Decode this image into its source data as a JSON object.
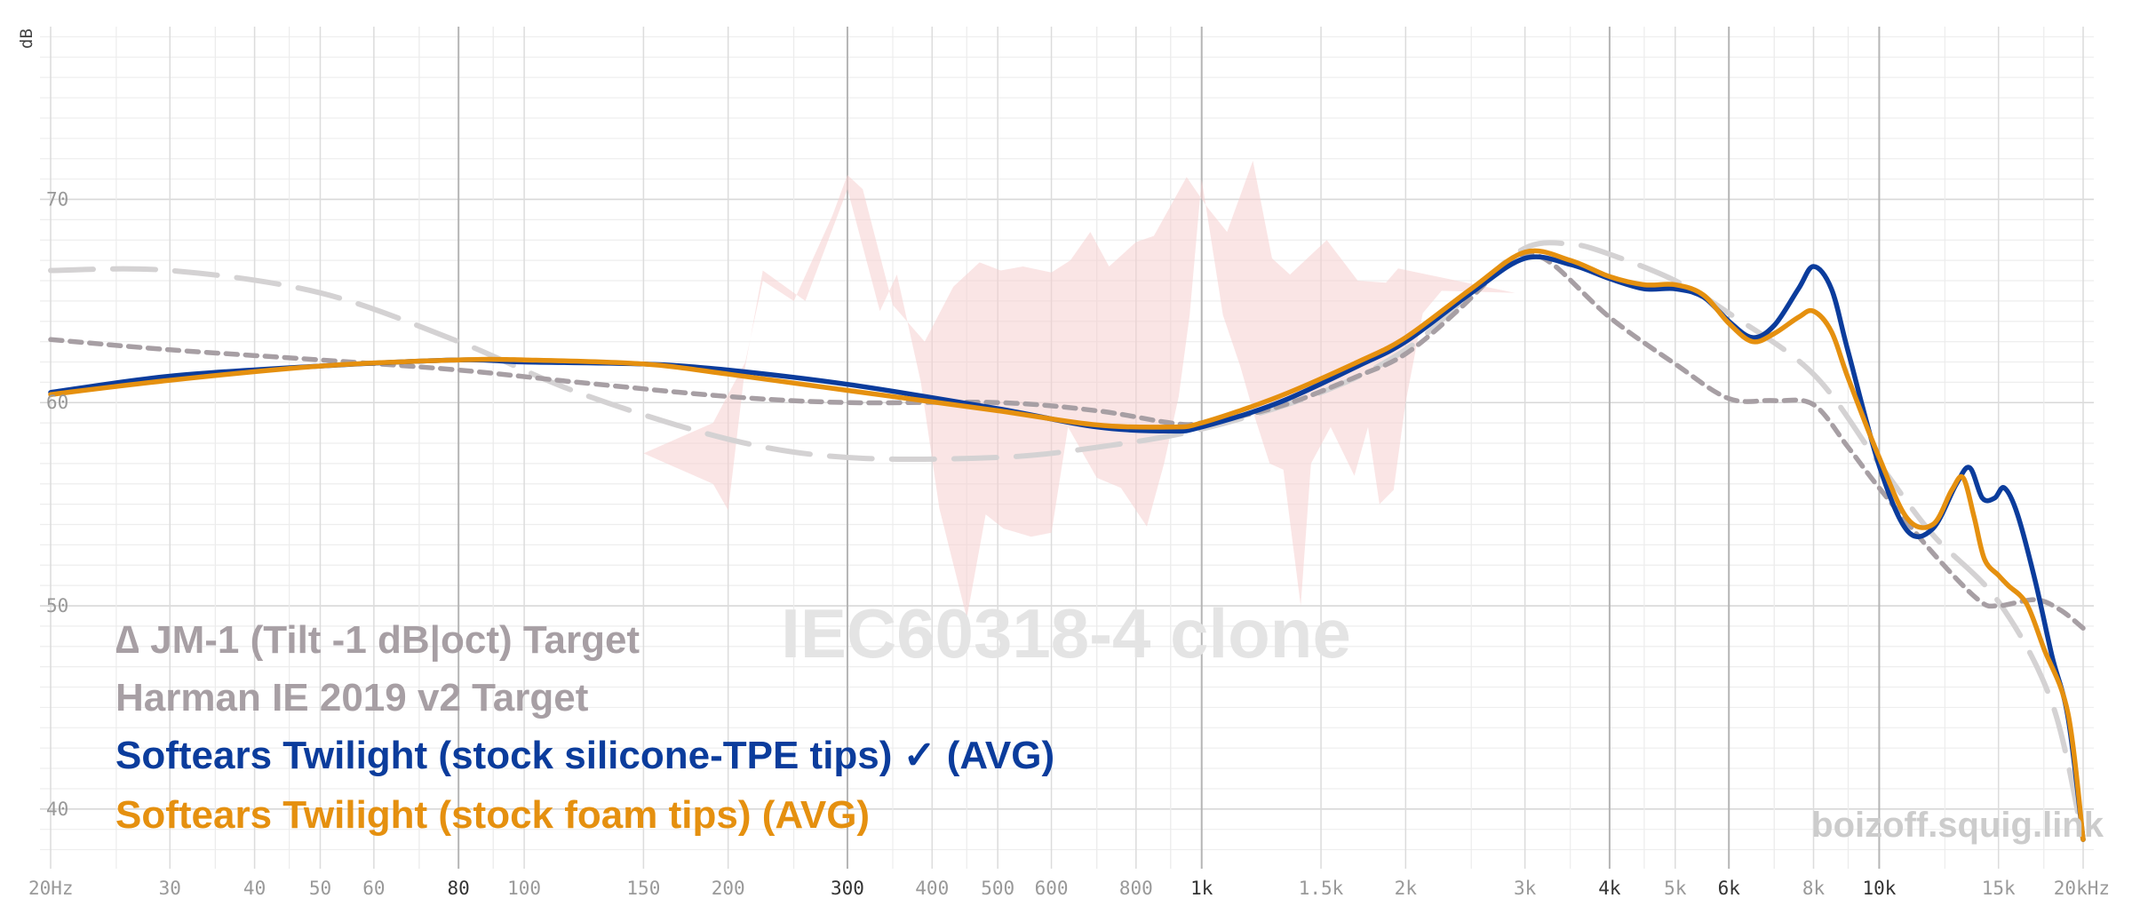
{
  "chart_data": {
    "type": "line",
    "xscale": "log",
    "xlim": [
      20,
      20000
    ],
    "ylim": [
      37.5,
      78.5
    ],
    "ylabel": "dB",
    "yticks": [
      40,
      50,
      60,
      70
    ],
    "xticks": [
      {
        "v": 20,
        "label": "20Hz"
      },
      {
        "v": 30,
        "label": "30"
      },
      {
        "v": 40,
        "label": "40"
      },
      {
        "v": 50,
        "label": "50"
      },
      {
        "v": 60,
        "label": "60"
      },
      {
        "v": 80,
        "label": "80",
        "major": true
      },
      {
        "v": 100,
        "label": "100"
      },
      {
        "v": 150,
        "label": "150"
      },
      {
        "v": 200,
        "label": "200"
      },
      {
        "v": 300,
        "label": "300",
        "major": true
      },
      {
        "v": 400,
        "label": "400"
      },
      {
        "v": 500,
        "label": "500"
      },
      {
        "v": 600,
        "label": "600"
      },
      {
        "v": 800,
        "label": "800"
      },
      {
        "v": 1000,
        "label": "1k",
        "major": true
      },
      {
        "v": 1500,
        "label": "1.5k"
      },
      {
        "v": 2000,
        "label": "2k"
      },
      {
        "v": 3000,
        "label": "3k"
      },
      {
        "v": 4000,
        "label": "4k",
        "major": true
      },
      {
        "v": 5000,
        "label": "5k"
      },
      {
        "v": 6000,
        "label": "6k",
        "major": true
      },
      {
        "v": 8000,
        "label": "8k"
      },
      {
        "v": 10000,
        "label": "10k",
        "major": true
      },
      {
        "v": 15000,
        "label": "15k"
      },
      {
        "v": 20000,
        "label": "20kHz"
      }
    ],
    "series": [
      {
        "name": "∆ JM-1 (Tilt -1 dB|oct) Target",
        "color": "#a79fa4",
        "dash": "dotted",
        "points": [
          [
            20,
            63.1
          ],
          [
            30,
            62.6
          ],
          [
            50,
            62.1
          ],
          [
            80,
            61.6
          ],
          [
            120,
            61.0
          ],
          [
            200,
            60.3
          ],
          [
            300,
            60.0
          ],
          [
            500,
            60.0
          ],
          [
            700,
            59.6
          ],
          [
            900,
            59.0
          ],
          [
            1000,
            59.0
          ],
          [
            1300,
            59.8
          ],
          [
            1700,
            61.3
          ],
          [
            2000,
            62.4
          ],
          [
            2400,
            64.6
          ],
          [
            2800,
            66.8
          ],
          [
            3000,
            67.3
          ],
          [
            3300,
            66.8
          ],
          [
            4000,
            64.2
          ],
          [
            5000,
            61.9
          ],
          [
            6000,
            60.2
          ],
          [
            7000,
            60.1
          ],
          [
            8000,
            59.9
          ],
          [
            9000,
            57.8
          ],
          [
            10000,
            55.8
          ],
          [
            12000,
            52.6
          ],
          [
            14000,
            50.3
          ],
          [
            15000,
            50.0
          ],
          [
            17000,
            50.3
          ],
          [
            18500,
            49.8
          ],
          [
            20000,
            48.9
          ]
        ]
      },
      {
        "name": "Harman IE 2019 v2 Target",
        "color": "#d4d2d3",
        "dash": "long-dash",
        "points": [
          [
            20,
            66.5
          ],
          [
            30,
            66.5
          ],
          [
            50,
            65.4
          ],
          [
            80,
            63.0
          ],
          [
            120,
            60.5
          ],
          [
            200,
            58.2
          ],
          [
            300,
            57.3
          ],
          [
            500,
            57.3
          ],
          [
            700,
            57.8
          ],
          [
            1000,
            58.7
          ],
          [
            1500,
            60.5
          ],
          [
            2000,
            62.6
          ],
          [
            2500,
            65.4
          ],
          [
            3000,
            67.6
          ],
          [
            3500,
            67.8
          ],
          [
            4000,
            67.3
          ],
          [
            5000,
            66.0
          ],
          [
            6000,
            64.4
          ],
          [
            8000,
            61.4
          ],
          [
            10000,
            57.0
          ],
          [
            12000,
            53.5
          ],
          [
            15000,
            50.2
          ],
          [
            18000,
            45.2
          ],
          [
            20000,
            38.5
          ]
        ]
      },
      {
        "name": "Softears Twilight (stock silicone-TPE tips) ✓ (AVG)",
        "color": "#0b3c9c",
        "dash": "solid",
        "points": [
          [
            20,
            60.5
          ],
          [
            30,
            61.3
          ],
          [
            50,
            61.8
          ],
          [
            80,
            62.1
          ],
          [
            100,
            62.0
          ],
          [
            150,
            61.9
          ],
          [
            200,
            61.6
          ],
          [
            300,
            60.9
          ],
          [
            500,
            59.7
          ],
          [
            700,
            58.8
          ],
          [
            900,
            58.6
          ],
          [
            1000,
            58.8
          ],
          [
            1300,
            60.0
          ],
          [
            1700,
            61.8
          ],
          [
            2000,
            63.0
          ],
          [
            2500,
            65.4
          ],
          [
            3000,
            67.1
          ],
          [
            3500,
            66.8
          ],
          [
            4000,
            66.1
          ],
          [
            4500,
            65.6
          ],
          [
            5000,
            65.6
          ],
          [
            5500,
            65.2
          ],
          [
            6000,
            64.0
          ],
          [
            6500,
            63.2
          ],
          [
            7000,
            63.8
          ],
          [
            7600,
            65.6
          ],
          [
            8000,
            66.7
          ],
          [
            8500,
            65.6
          ],
          [
            9000,
            62.5
          ],
          [
            10000,
            56.9
          ],
          [
            11000,
            53.7
          ],
          [
            12000,
            53.8
          ],
          [
            13000,
            56.0
          ],
          [
            13600,
            56.8
          ],
          [
            14200,
            55.3
          ],
          [
            14800,
            55.3
          ],
          [
            15300,
            55.8
          ],
          [
            16000,
            54.5
          ],
          [
            17000,
            51.2
          ],
          [
            18000,
            47.5
          ],
          [
            19000,
            44.5
          ],
          [
            20000,
            38.5
          ]
        ]
      },
      {
        "name": "Softears Twilight (stock foam tips) (AVG)",
        "color": "#e5900f",
        "dash": "solid",
        "points": [
          [
            20,
            60.4
          ],
          [
            30,
            61.1
          ],
          [
            50,
            61.8
          ],
          [
            80,
            62.1
          ],
          [
            100,
            62.1
          ],
          [
            150,
            61.9
          ],
          [
            200,
            61.4
          ],
          [
            300,
            60.6
          ],
          [
            500,
            59.6
          ],
          [
            700,
            58.9
          ],
          [
            900,
            58.8
          ],
          [
            1000,
            59.0
          ],
          [
            1300,
            60.3
          ],
          [
            1700,
            62.0
          ],
          [
            2000,
            63.2
          ],
          [
            2500,
            65.6
          ],
          [
            3000,
            67.4
          ],
          [
            3500,
            67.0
          ],
          [
            4000,
            66.2
          ],
          [
            4500,
            65.8
          ],
          [
            5000,
            65.8
          ],
          [
            5500,
            65.3
          ],
          [
            6000,
            63.9
          ],
          [
            6500,
            63.0
          ],
          [
            7000,
            63.4
          ],
          [
            7600,
            64.2
          ],
          [
            8000,
            64.5
          ],
          [
            8500,
            63.5
          ],
          [
            9000,
            61.2
          ],
          [
            10000,
            57.3
          ],
          [
            11000,
            54.3
          ],
          [
            12000,
            54.0
          ],
          [
            12800,
            55.7
          ],
          [
            13300,
            56.3
          ],
          [
            13800,
            54.4
          ],
          [
            14300,
            52.3
          ],
          [
            15000,
            51.5
          ],
          [
            15500,
            51.0
          ],
          [
            16500,
            50.1
          ],
          [
            17500,
            47.9
          ],
          [
            19000,
            44.7
          ],
          [
            20000,
            38.5
          ]
        ]
      }
    ],
    "pink_polygon": [
      [
        150,
        57.5
      ],
      [
        190,
        56.0
      ],
      [
        200,
        54.7
      ],
      [
        212,
        61.8
      ],
      [
        225,
        66.5
      ],
      [
        260,
        65.0
      ],
      [
        300,
        70.5
      ],
      [
        335,
        64.5
      ],
      [
        355,
        66.3
      ],
      [
        385,
        61.0
      ],
      [
        410,
        54.8
      ],
      [
        450,
        49.4
      ],
      [
        480,
        54.5
      ],
      [
        510,
        53.8
      ],
      [
        560,
        53.4
      ],
      [
        600,
        53.6
      ],
      [
        635,
        58.8
      ],
      [
        700,
        56.3
      ],
      [
        760,
        55.8
      ],
      [
        830,
        53.9
      ],
      [
        880,
        57.0
      ],
      [
        925,
        60.3
      ],
      [
        960,
        64.3
      ],
      [
        1000,
        71.0
      ],
      [
        1075,
        64.3
      ],
      [
        1140,
        61.8
      ],
      [
        1200,
        59.2
      ],
      [
        1260,
        57.0
      ],
      [
        1320,
        56.7
      ],
      [
        1400,
        50.0
      ],
      [
        1450,
        57.0
      ],
      [
        1550,
        58.8
      ],
      [
        1680,
        56.4
      ],
      [
        1760,
        58.8
      ],
      [
        1830,
        55.0
      ],
      [
        1920,
        55.7
      ],
      [
        2000,
        60.0
      ],
      [
        2120,
        64.4
      ],
      [
        2260,
        65.5
      ],
      [
        2900,
        65.4
      ],
      [
        1950,
        66.6
      ],
      [
        1870,
        65.9
      ],
      [
        1700,
        66.0
      ],
      [
        1530,
        68.0
      ],
      [
        1350,
        66.3
      ],
      [
        1270,
        67.1
      ],
      [
        1190,
        71.9
      ],
      [
        1090,
        68.4
      ],
      [
        1020,
        69.6
      ],
      [
        950,
        71.1
      ],
      [
        850,
        68.2
      ],
      [
        800,
        67.9
      ],
      [
        730,
        66.7
      ],
      [
        685,
        68.4
      ],
      [
        640,
        67.0
      ],
      [
        600,
        66.4
      ],
      [
        545,
        66.7
      ],
      [
        505,
        66.5
      ],
      [
        470,
        66.9
      ],
      [
        430,
        65.7
      ],
      [
        390,
        63.0
      ],
      [
        350,
        64.8
      ],
      [
        316,
        70.5
      ],
      [
        300,
        71.2
      ],
      [
        285,
        69.2
      ],
      [
        250,
        65.0
      ],
      [
        225,
        66.0
      ],
      [
        212,
        62.0
      ],
      [
        190,
        59.0
      ],
      [
        150,
        57.5
      ]
    ]
  },
  "legend": [
    {
      "text": "∆ JM-1 (Tilt -1 dB|oct) Target",
      "color": "#a79fa4"
    },
    {
      "text": "Harman IE 2019 v2 Target",
      "color": "#a79fa4"
    },
    {
      "text": "Softears Twilight (stock silicone-TPE tips) ✓ (AVG)",
      "color": "#0b3c9c"
    },
    {
      "text": "Softears Twilight (stock foam tips) (AVG)",
      "color": "#e5900f"
    }
  ],
  "watermark": "IEC60318-4 clone",
  "site": "boizoff.squig.link"
}
